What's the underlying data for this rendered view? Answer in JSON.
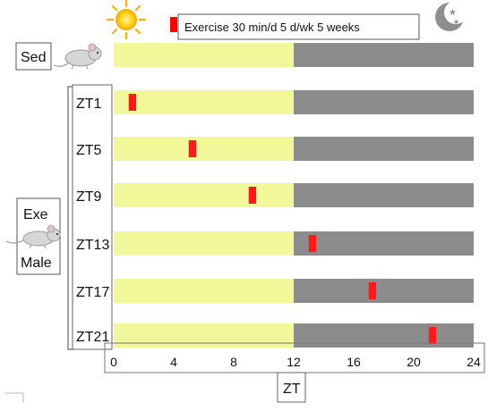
{
  "legend": {
    "label": "Exercise  30 min/d  5 d/wk 5 weeks",
    "marker_color": "#ff0000"
  },
  "icons": {
    "day": "sun-icon",
    "night": "moon-stars-icon",
    "mouse": "mouse-icon"
  },
  "groups": {
    "sed_label": "Sed",
    "exe_label_line1": "Exe",
    "exe_label_line2": "Male"
  },
  "colors": {
    "light": "#f2f79a",
    "dark": "#8c8c8c",
    "exercise": "#ff1a1a"
  },
  "chart_data": {
    "type": "timeline",
    "xlabel": "ZT",
    "xlim": [
      0,
      24
    ],
    "xticks": [
      0,
      4,
      8,
      12,
      16,
      20,
      24
    ],
    "light_phase": [
      0,
      12
    ],
    "dark_phase": [
      12,
      24
    ],
    "rows": [
      {
        "label": "Sed",
        "exercise_start": null
      },
      {
        "label": "ZT1",
        "exercise_start": 1
      },
      {
        "label": "ZT5",
        "exercise_start": 5
      },
      {
        "label": "ZT9",
        "exercise_start": 9
      },
      {
        "label": "ZT13",
        "exercise_start": 13
      },
      {
        "label": "ZT17",
        "exercise_start": 17
      },
      {
        "label": "ZT21",
        "exercise_start": 21
      }
    ],
    "exercise_duration_h": 0.5
  }
}
